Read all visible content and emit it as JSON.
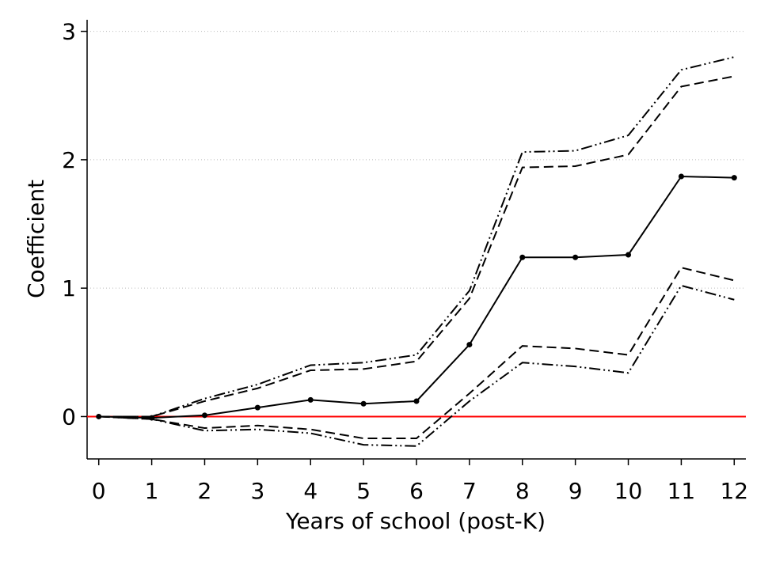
{
  "chart_data": {
    "type": "line",
    "x_label": "Years of school (post-K)",
    "y_label": "Coefficient",
    "x": [
      0,
      1,
      2,
      3,
      4,
      5,
      6,
      7,
      8,
      9,
      10,
      11,
      12
    ],
    "series": [
      {
        "color": "#000000",
        "dash": "solid",
        "markers": true,
        "values": [
          0,
          -0.01,
          0.01,
          0.07,
          0.13,
          0.1,
          0.12,
          0.56,
          1.24,
          1.24,
          1.26,
          1.87,
          1.86
        ]
      },
      {
        "color": "#000000",
        "dash": "dash",
        "markers": false,
        "values": [
          0,
          0,
          0.12,
          0.22,
          0.36,
          0.37,
          0.43,
          0.92,
          1.94,
          1.95,
          2.04,
          2.57,
          2.65
        ]
      },
      {
        "color": "#000000",
        "dash": "dash",
        "markers": false,
        "values": [
          0,
          -0.02,
          -0.09,
          -0.07,
          -0.1,
          -0.17,
          -0.17,
          0.18,
          0.55,
          0.53,
          0.48,
          1.16,
          1.06
        ]
      },
      {
        "color": "#000000",
        "dash": "dashdot",
        "markers": false,
        "values": [
          0,
          0,
          0.14,
          0.25,
          0.4,
          0.42,
          0.48,
          0.98,
          2.06,
          2.07,
          2.19,
          2.7,
          2.8
        ]
      },
      {
        "color": "#000000",
        "dash": "dashdot",
        "markers": false,
        "values": [
          0,
          -0.02,
          -0.11,
          -0.1,
          -0.13,
          -0.22,
          -0.23,
          0.12,
          0.42,
          0.39,
          0.34,
          1.02,
          0.91
        ]
      }
    ],
    "hline": {
      "value": 0,
      "color": "#ff0000"
    },
    "xlim": [
      -0.22,
      12.22
    ],
    "xticks": [
      0,
      1,
      2,
      3,
      4,
      5,
      6,
      7,
      8,
      9,
      10,
      11,
      12
    ],
    "ylim": [
      -0.33,
      3.09
    ],
    "yticks": [
      0,
      1,
      2,
      3
    ],
    "grid": true
  }
}
